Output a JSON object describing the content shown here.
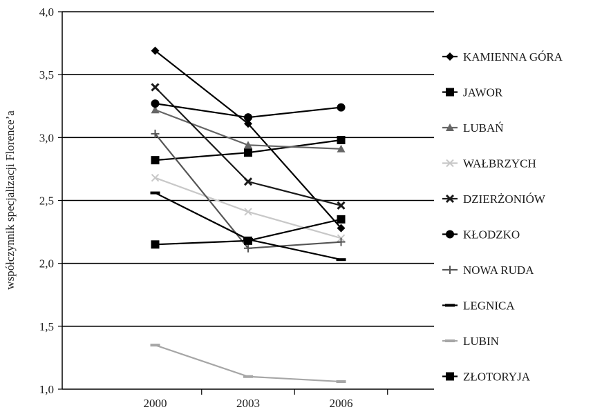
{
  "chart_data": {
    "type": "line",
    "title": "",
    "xlabel": "",
    "ylabel": "współczynnik specjalizacji Florence’a",
    "categories": [
      "2000",
      "2003",
      "2006"
    ],
    "ylim": [
      1.0,
      4.0
    ],
    "yticks": [
      "1,0",
      "1,5",
      "2,0",
      "2,5",
      "3,0",
      "3,5",
      "4,0"
    ],
    "grid": true,
    "legend_position": "right",
    "series": [
      {
        "name": "KAMIENNA GÓRA",
        "values": [
          3.69,
          3.11,
          2.28
        ],
        "color": "#000000",
        "marker": "diamond"
      },
      {
        "name": "JAWOR",
        "values": [
          2.82,
          2.88,
          2.98
        ],
        "color": "#000000",
        "marker": "square"
      },
      {
        "name": "LUBAŃ",
        "values": [
          3.22,
          2.94,
          2.91
        ],
        "color": "#666666",
        "marker": "triangle"
      },
      {
        "name": "WAŁBRZYCH",
        "values": [
          2.68,
          2.41,
          2.2
        ],
        "color": "#c8c8c8",
        "marker": "x"
      },
      {
        "name": "DZIERŻONIÓW",
        "values": [
          3.4,
          2.65,
          2.46
        ],
        "color": "#1a1a1a",
        "marker": "cross"
      },
      {
        "name": "KŁODZKO",
        "values": [
          3.27,
          3.16,
          3.24
        ],
        "color": "#000000",
        "marker": "circle"
      },
      {
        "name": "NOWA RUDA",
        "values": [
          3.03,
          2.12,
          2.17
        ],
        "color": "#555555",
        "marker": "plus"
      },
      {
        "name": "LEGNICA",
        "values": [
          2.56,
          2.19,
          2.03
        ],
        "color": "#000000",
        "marker": "dash"
      },
      {
        "name": "LUBIN",
        "values": [
          1.35,
          1.1,
          1.06
        ],
        "color": "#a6a6a6",
        "marker": "dash"
      },
      {
        "name": "ZŁOTORYJA",
        "values": [
          2.15,
          2.18,
          2.35
        ],
        "color": "#000000",
        "marker": "square"
      }
    ]
  }
}
